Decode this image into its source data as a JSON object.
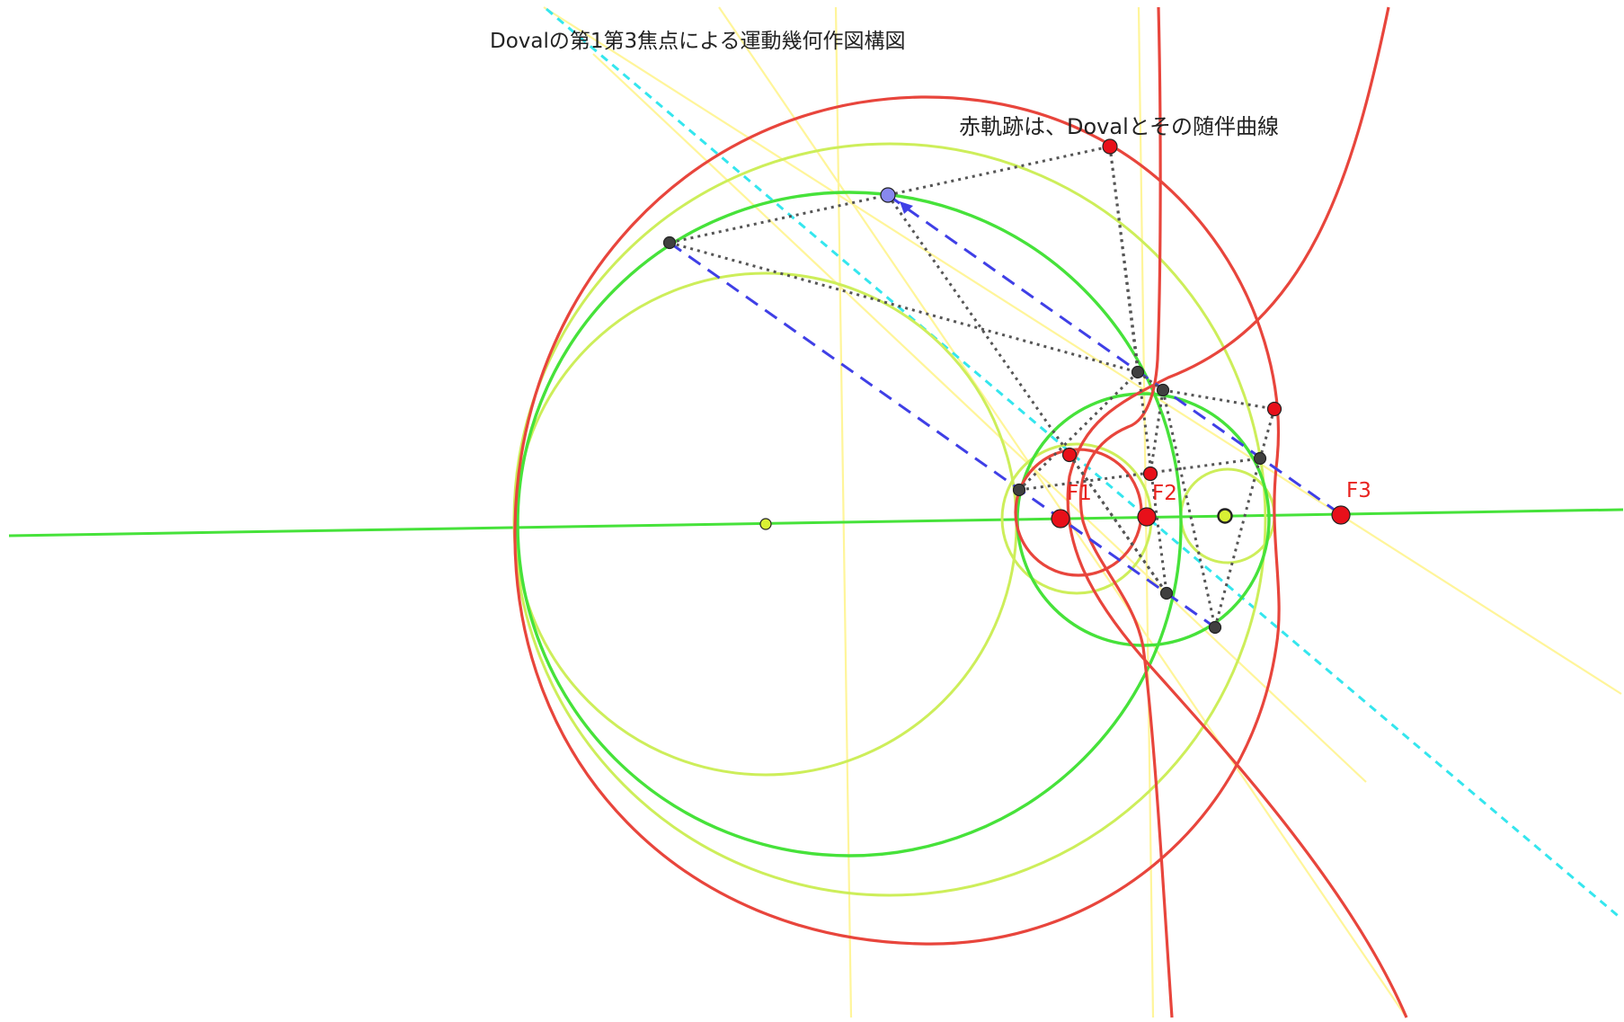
{
  "title": "Dovalの第1第3焦点による運動幾何作図構図",
  "subtitle": "赤軌跡は、Dovalとその随伴曲線",
  "labels": {
    "f1": "F1",
    "f2": "F2",
    "f3": "F3"
  },
  "colors": {
    "locus_red": "#e8453c",
    "circle_green": "#46e23a",
    "circle_yellowgreen": "#cdee5a",
    "line_yellow": "#fff59a",
    "line_cyan": "#34e6ee",
    "dashed_blue": "#3f3fe6",
    "dotted_gray": "#555555",
    "point_red": "#e8101a",
    "point_gray": "#404040",
    "point_blue": "#8888ee",
    "point_yellow": "#d9f034"
  }
}
